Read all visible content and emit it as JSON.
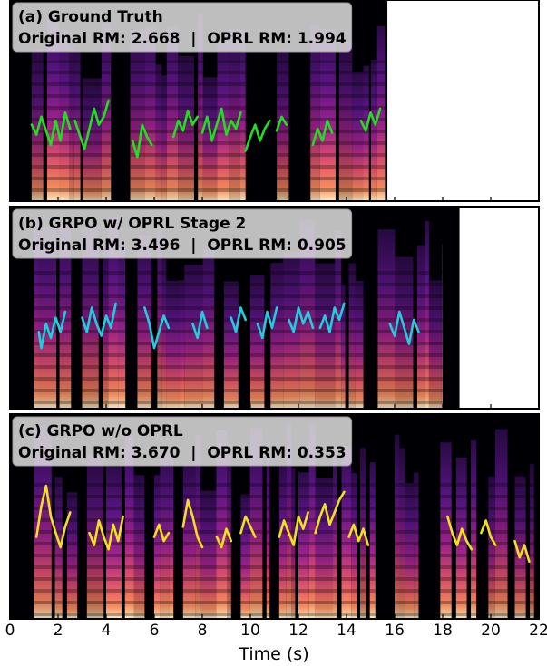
{
  "chart_data": {
    "type": "spectrogram",
    "xlabel": "Time (s)",
    "xlim": [
      0,
      22
    ],
    "x_ticks": [
      0,
      2,
      4,
      6,
      8,
      10,
      12,
      14,
      16,
      18,
      20,
      22
    ],
    "panels": [
      {
        "title": "(a) Ground Truth",
        "metrics": "Original RM: 2.668  |  OPRL RM: 1.994",
        "original_rm": 2.668,
        "oprl_rm": 1.994,
        "audio_duration_s": 15.7,
        "pitch_color": "#22dd22",
        "voiced_segments_s": [
          [
            0.9,
            4.2
          ],
          [
            5.0,
            9.8
          ],
          [
            11.1,
            11.6
          ],
          [
            12.5,
            15.6
          ]
        ],
        "pitch_contours": [
          {
            "t": [
              0.9,
              1.1,
              1.3,
              1.5,
              1.7,
              1.9,
              2.1,
              2.3,
              2.5
            ],
            "y": [
              0.38,
              0.33,
              0.42,
              0.35,
              0.28,
              0.4,
              0.3,
              0.44,
              0.36
            ]
          },
          {
            "t": [
              2.7,
              2.9,
              3.1,
              3.3,
              3.5,
              3.7,
              3.9,
              4.1
            ],
            "y": [
              0.4,
              0.33,
              0.26,
              0.36,
              0.46,
              0.38,
              0.42,
              0.5
            ]
          },
          {
            "t": [
              5.1,
              5.3,
              5.5,
              5.7,
              5.9
            ],
            "y": [
              0.3,
              0.22,
              0.38,
              0.32,
              0.28
            ]
          },
          {
            "t": [
              6.8,
              7.0,
              7.2,
              7.4,
              7.6,
              7.8
            ],
            "y": [
              0.32,
              0.4,
              0.35,
              0.45,
              0.38,
              0.42
            ]
          },
          {
            "t": [
              8.0,
              8.2,
              8.4,
              8.6,
              8.8,
              9.0,
              9.2,
              9.4,
              9.6
            ],
            "y": [
              0.34,
              0.42,
              0.3,
              0.38,
              0.46,
              0.33,
              0.4,
              0.36,
              0.44
            ]
          },
          {
            "t": [
              9.8,
              10.0,
              10.2,
              10.4,
              10.6,
              10.8
            ],
            "y": [
              0.25,
              0.32,
              0.38,
              0.3,
              0.36,
              0.4
            ]
          },
          {
            "t": [
              11.1,
              11.3,
              11.5
            ],
            "y": [
              0.35,
              0.42,
              0.38
            ]
          },
          {
            "t": [
              12.6,
              12.8,
              13.0,
              13.2,
              13.4
            ],
            "y": [
              0.28,
              0.36,
              0.3,
              0.4,
              0.34
            ]
          },
          {
            "t": [
              14.6,
              14.8,
              15.0,
              15.2,
              15.4
            ],
            "y": [
              0.4,
              0.35,
              0.44,
              0.38,
              0.46
            ]
          }
        ]
      },
      {
        "title": "(b) GRPO w/ OPRL Stage 2",
        "metrics": "Original RM: 3.496  |  OPRL RM: 0.905",
        "original_rm": 3.496,
        "oprl_rm": 0.905,
        "audio_duration_s": 18.7,
        "pitch_color": "#22ccdd",
        "voiced_segments_s": [
          [
            1.0,
            2.6
          ],
          [
            3.0,
            4.8
          ],
          [
            5.3,
            8.5
          ],
          [
            8.9,
            9.5
          ],
          [
            10.0,
            14.7
          ],
          [
            15.3,
            18.0
          ]
        ],
        "pitch_contours": [
          {
            "t": [
              1.2,
              1.3,
              1.5,
              1.7,
              1.9,
              2.1,
              2.3
            ],
            "y": [
              0.38,
              0.3,
              0.42,
              0.35,
              0.45,
              0.38,
              0.48
            ]
          },
          {
            "t": [
              3.0,
              3.2,
              3.4,
              3.6,
              3.8,
              4.0,
              4.2,
              4.4
            ],
            "y": [
              0.45,
              0.38,
              0.5,
              0.42,
              0.36,
              0.46,
              0.4,
              0.52
            ]
          },
          {
            "t": [
              5.6,
              5.8,
              6.0,
              6.2,
              6.4,
              6.6
            ],
            "y": [
              0.5,
              0.42,
              0.3,
              0.38,
              0.46,
              0.4
            ]
          },
          {
            "t": [
              7.6,
              7.8,
              8.0,
              8.2
            ],
            "y": [
              0.42,
              0.35,
              0.48,
              0.4
            ]
          },
          {
            "t": [
              9.2,
              9.4,
              9.6,
              9.8
            ],
            "y": [
              0.45,
              0.38,
              0.5,
              0.44
            ]
          },
          {
            "t": [
              10.3,
              10.5,
              10.7,
              10.9,
              11.1
            ],
            "y": [
              0.42,
              0.35,
              0.48,
              0.4,
              0.5
            ]
          },
          {
            "t": [
              11.6,
              11.8,
              12.0,
              12.2,
              12.4,
              12.6
            ],
            "y": [
              0.44,
              0.38,
              0.5,
              0.42,
              0.48,
              0.4
            ]
          },
          {
            "t": [
              12.9,
              13.1,
              13.3,
              13.5,
              13.7,
              13.9
            ],
            "y": [
              0.4,
              0.46,
              0.38,
              0.5,
              0.44,
              0.52
            ]
          },
          {
            "t": [
              15.8,
              16.0,
              16.2,
              16.4,
              16.6,
              16.8,
              17.0
            ],
            "y": [
              0.42,
              0.36,
              0.48,
              0.4,
              0.32,
              0.44,
              0.38
            ]
          }
        ]
      },
      {
        "title": "(c) GRPO w/o OPRL",
        "metrics": "Original RM: 3.670  |  OPRL RM: 0.353",
        "original_rm": 3.67,
        "oprl_rm": 0.353,
        "audio_duration_s": 22.0,
        "pitch_color": "#f0e020",
        "voiced_segments_s": [
          [
            1.0,
            2.8
          ],
          [
            3.2,
            5.6
          ],
          [
            6.0,
            6.8
          ],
          [
            7.2,
            9.2
          ],
          [
            9.6,
            10.8
          ],
          [
            11.2,
            15.2
          ],
          [
            16.0,
            17.0
          ],
          [
            17.9,
            19.4
          ],
          [
            19.9,
            20.7
          ],
          [
            21.0,
            21.8
          ]
        ],
        "pitch_contours": [
          {
            "t": [
              1.1,
              1.3,
              1.5,
              1.7,
              1.9,
              2.1,
              2.3,
              2.5
            ],
            "y": [
              0.4,
              0.55,
              0.65,
              0.5,
              0.42,
              0.35,
              0.45,
              0.52
            ]
          },
          {
            "t": [
              3.3,
              3.5,
              3.7,
              3.9,
              4.1,
              4.3,
              4.5,
              4.7
            ],
            "y": [
              0.42,
              0.36,
              0.48,
              0.4,
              0.34,
              0.46,
              0.38,
              0.5
            ]
          },
          {
            "t": [
              6.0,
              6.2,
              6.4,
              6.6
            ],
            "y": [
              0.4,
              0.46,
              0.38,
              0.42
            ]
          },
          {
            "t": [
              7.2,
              7.4,
              7.6,
              7.8,
              8.0
            ],
            "y": [
              0.45,
              0.58,
              0.5,
              0.4,
              0.35
            ]
          },
          {
            "t": [
              8.6,
              8.8,
              9.0,
              9.2
            ],
            "y": [
              0.4,
              0.35,
              0.44,
              0.38
            ]
          },
          {
            "t": [
              9.6,
              9.8,
              10.0,
              10.2
            ],
            "y": [
              0.42,
              0.5,
              0.45,
              0.4
            ]
          },
          {
            "t": [
              11.2,
              11.4,
              11.6,
              11.8,
              12.0,
              12.2,
              12.4
            ],
            "y": [
              0.4,
              0.48,
              0.42,
              0.36,
              0.5,
              0.44,
              0.52
            ]
          },
          {
            "t": [
              12.7,
              12.9,
              13.1,
              13.3,
              13.5,
              13.7,
              13.9
            ],
            "y": [
              0.42,
              0.5,
              0.56,
              0.46,
              0.52,
              0.58,
              0.62
            ]
          },
          {
            "t": [
              14.1,
              14.3,
              14.5,
              14.7,
              14.9
            ],
            "y": [
              0.4,
              0.46,
              0.38,
              0.44,
              0.36
            ]
          },
          {
            "t": [
              18.2,
              18.4,
              18.6,
              18.8,
              19.0,
              19.2
            ],
            "y": [
              0.5,
              0.42,
              0.36,
              0.44,
              0.38,
              0.34
            ]
          },
          {
            "t": [
              19.6,
              19.8,
              20.0,
              20.2
            ],
            "y": [
              0.42,
              0.48,
              0.4,
              0.36
            ]
          },
          {
            "t": [
              21.0,
              21.2,
              21.4,
              21.6
            ],
            "y": [
              0.38,
              0.3,
              0.36,
              0.28
            ]
          }
        ]
      }
    ]
  }
}
